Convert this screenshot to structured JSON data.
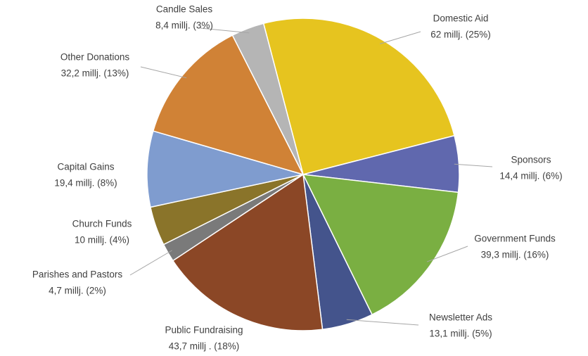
{
  "chart_data": {
    "type": "pie",
    "categories": [
      "Domestic Aid",
      "Sponsors",
      "Government Funds",
      "Newsletter Ads",
      "Public Fundraising",
      "Parishes and Pastors",
      "Church Funds",
      "Capital Gains",
      "Other Donations",
      "Candle Sales"
    ],
    "values": [
      62,
      14.4,
      39.3,
      13.1,
      43.7,
      4.7,
      10,
      19.4,
      32.2,
      8.4
    ],
    "value_labels": [
      "62 millj. (25%)",
      "14,4 millj. (6%)",
      "39,3 millj. (16%)",
      "13,1 millj. (5%)",
      "43,7 millj . (18%)",
      "4,7 millj. (2%)",
      "10 millj. (4%)",
      "19,4 millj. (8%)",
      "32,2 millj. (13%)",
      "8,4 millj. (3%)"
    ],
    "colors": [
      "#e6c41f",
      "#6068ae",
      "#7aaf42",
      "#44548c",
      "#8b4726",
      "#7a7a7a",
      "#8a742a",
      "#7f9ccf",
      "#d08236",
      "#b5b5b5"
    ]
  }
}
